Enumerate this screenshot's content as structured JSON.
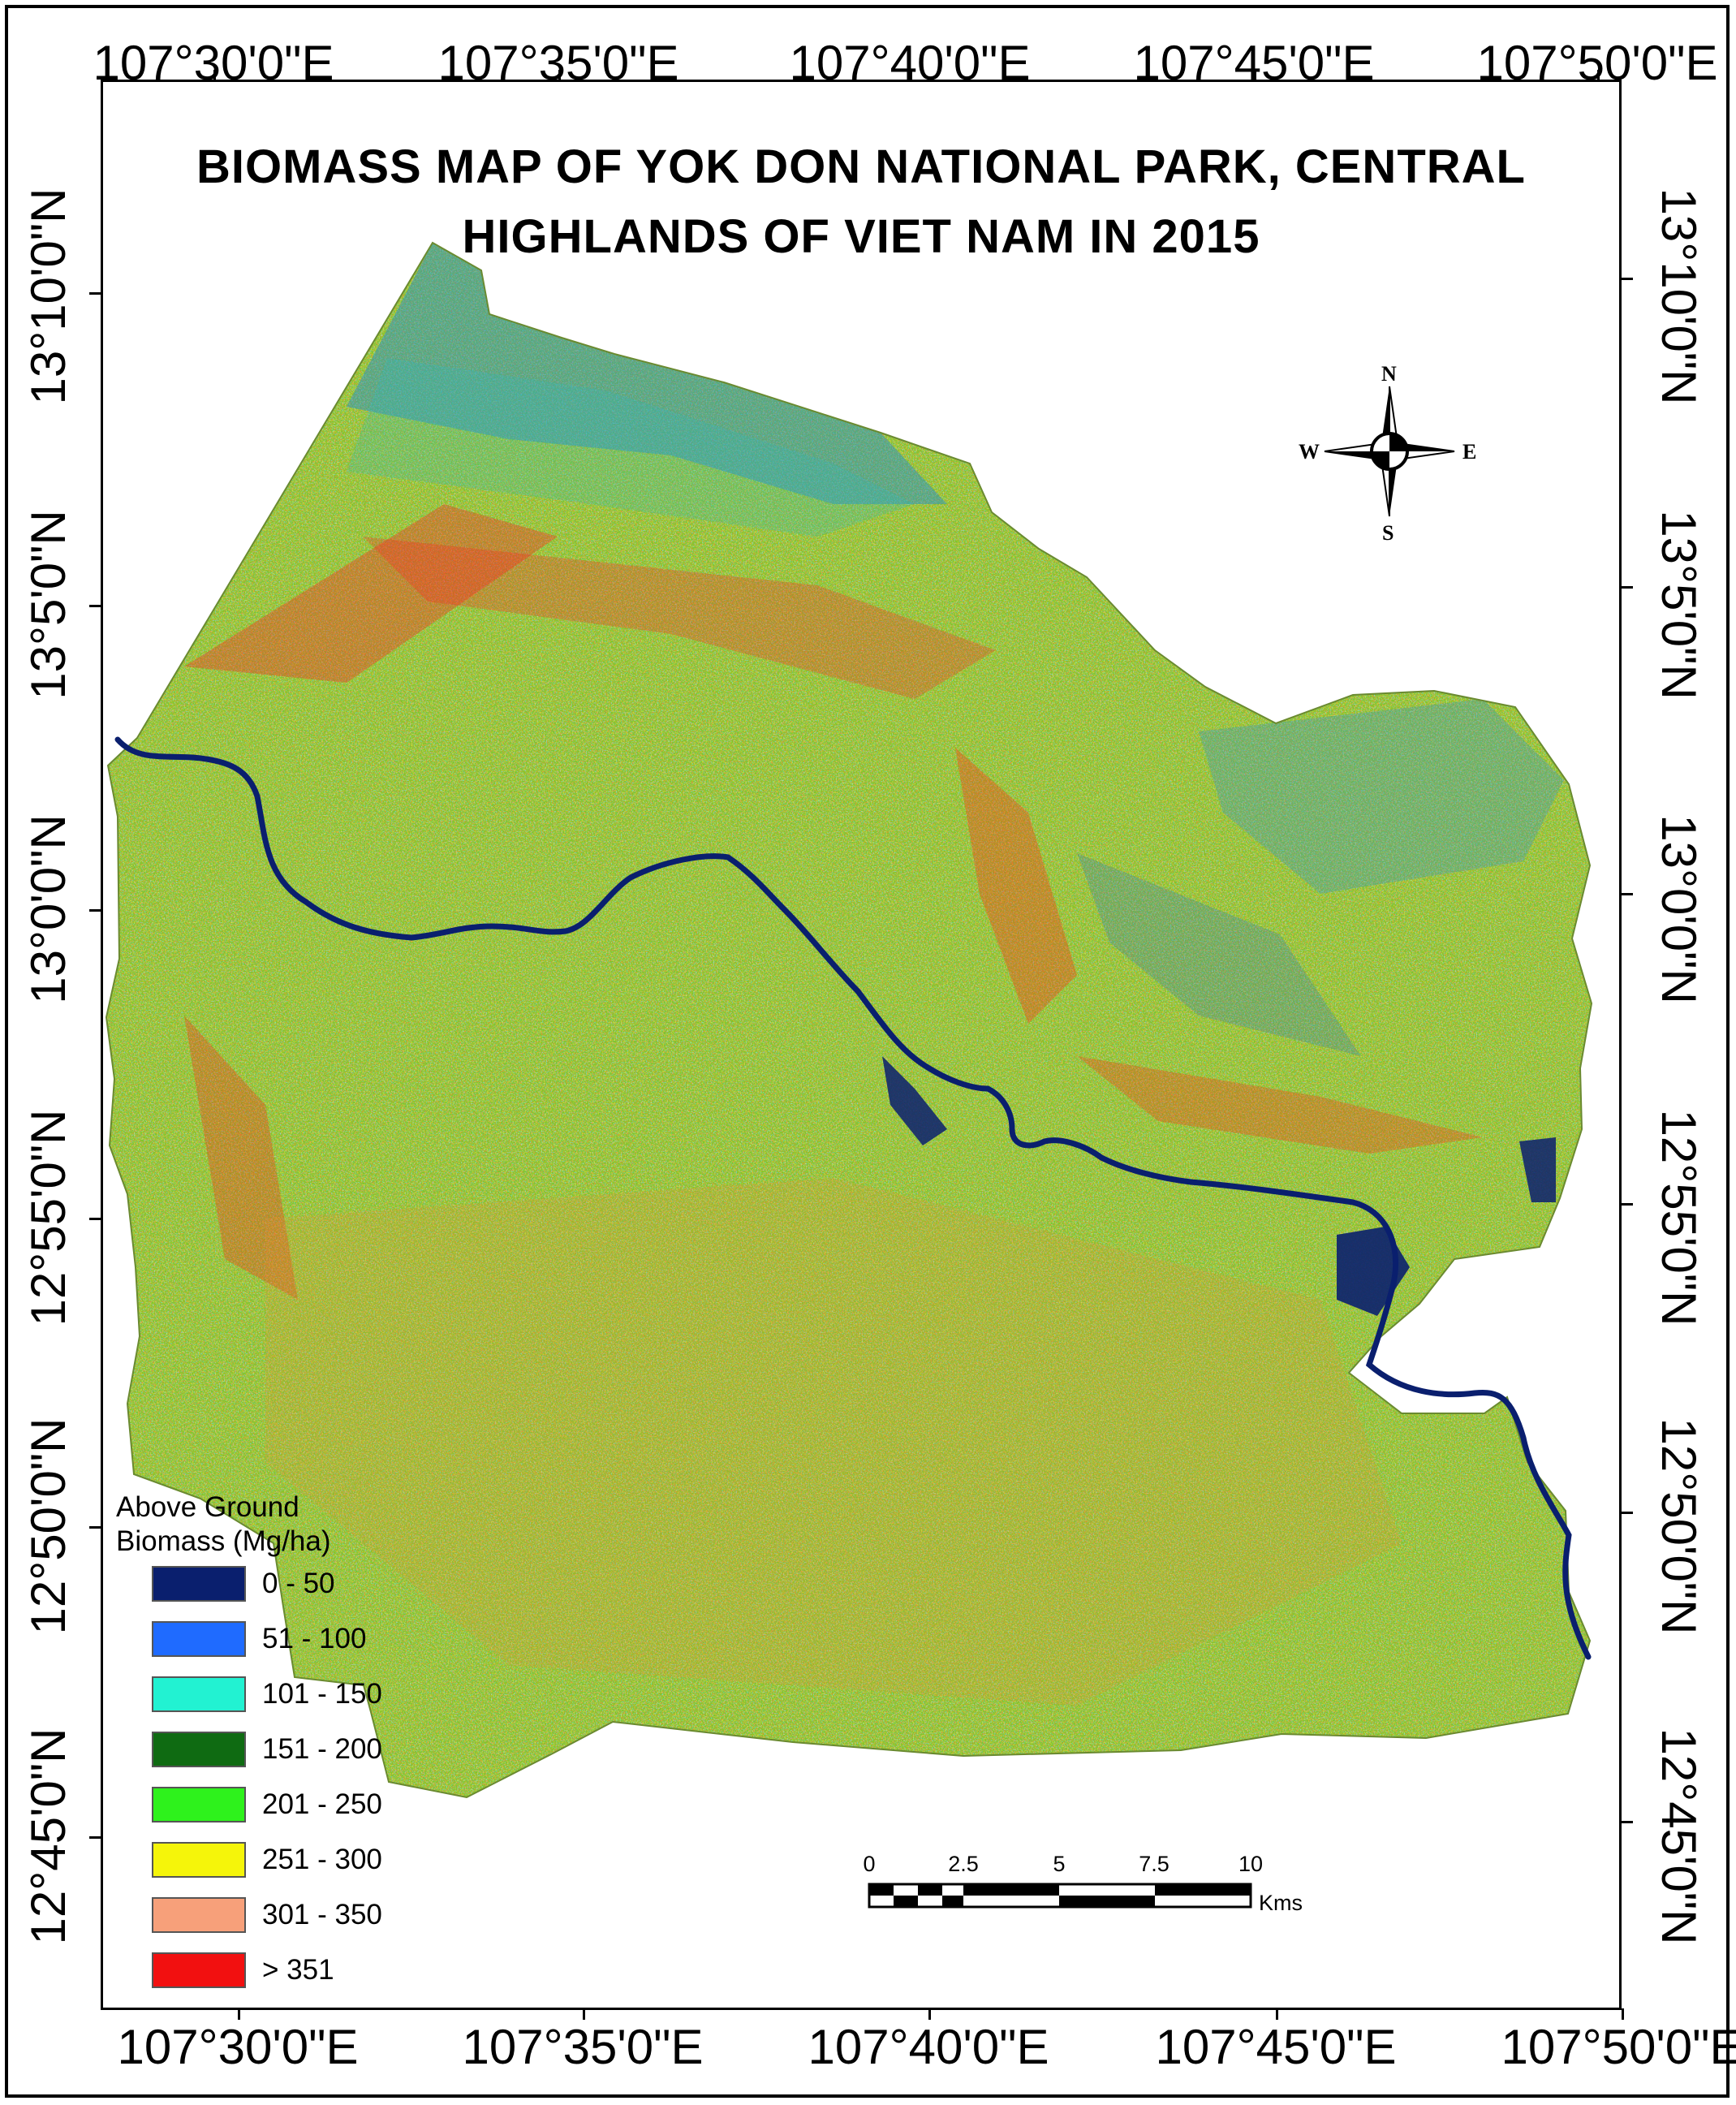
{
  "map": {
    "title_line1": "BIOMASS MAP OF YOK DON NATIONAL PARK, CENTRAL",
    "title_line2": "HIGHLANDS OF VIET NAM IN 2015",
    "longitude_labels": [
      "107°30'0\"E",
      "107°35'0\"E",
      "107°40'0\"E",
      "107°45'0\"E",
      "107°50'0\"E"
    ],
    "latitude_labels_left": [
      "13°10'0\"N",
      "13°5'0\"N",
      "13°0'0\"N",
      "12°55'0\"N",
      "12°50'0\"N",
      "12°45'0\"N"
    ],
    "latitude_labels_right": [
      "13°10'0\"N",
      "13°5'0\"N",
      "13°0'0\"N",
      "12°55'0\"N",
      "12°50'0\"N",
      "12°45'0\"N"
    ],
    "compass": {
      "n": "N",
      "s": "S",
      "e": "E",
      "w": "W"
    },
    "scale_bar": {
      "ticks": [
        "0",
        "2.5",
        "5",
        "7.5",
        "10"
      ],
      "unit": "Kms"
    },
    "legend": {
      "title_line1": "Above Ground",
      "title_line2": "Biomass (Mg/ha)",
      "items": [
        {
          "label": "0 - 50",
          "color": "#0a1f6e"
        },
        {
          "label": "51 - 100",
          "color": "#1f6bff"
        },
        {
          "label": "101 - 150",
          "color": "#22f2d2"
        },
        {
          "label": "151 - 200",
          "color": "#0f6b12"
        },
        {
          "label": "201 - 250",
          "color": "#2ef21c"
        },
        {
          "label": "251 - 300",
          "color": "#f5f50a"
        },
        {
          "label": "301 - 350",
          "color": "#f7a07a"
        },
        {
          "label": "> 351",
          "color": "#f21010"
        }
      ]
    },
    "colors": {
      "river": "#0a1f6e",
      "frame": "#000000",
      "background": "#ffffff"
    }
  }
}
